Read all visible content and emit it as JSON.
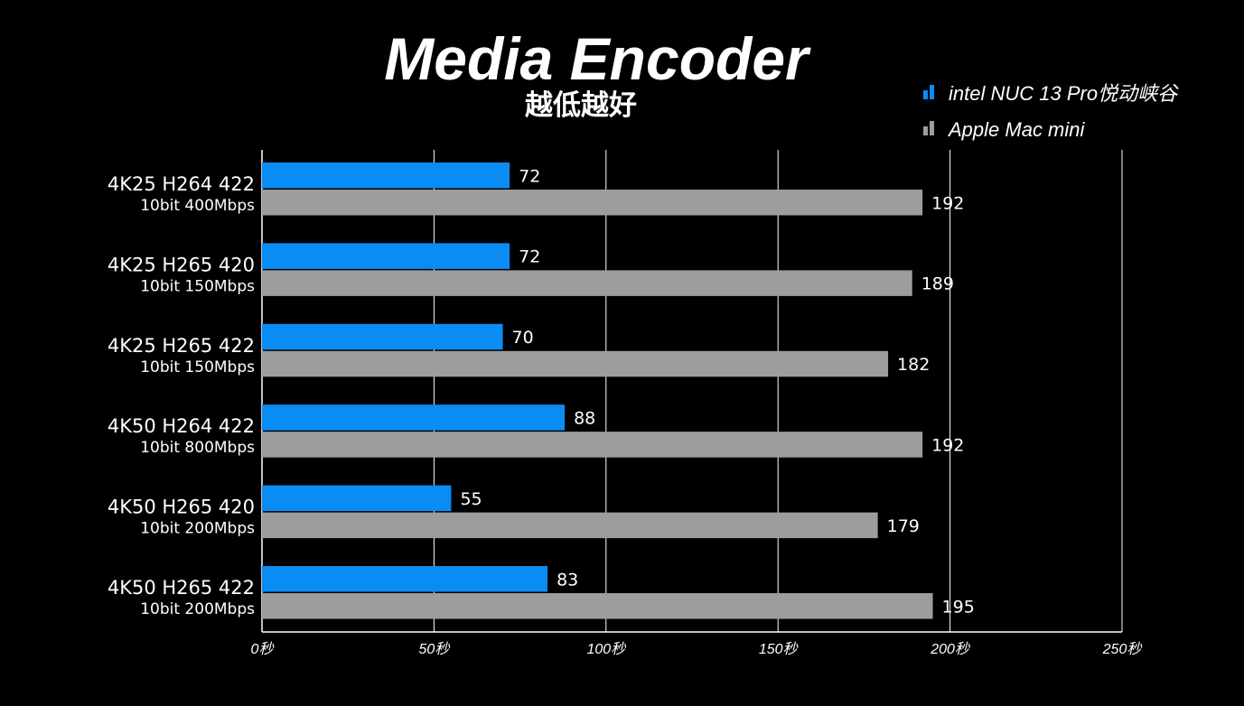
{
  "chart_data": {
    "type": "bar",
    "orientation": "horizontal",
    "title": "Media Encoder",
    "subtitle": "越低越好",
    "categories": [
      {
        "main": "4K25 H264 422",
        "sub": "10bit 400Mbps"
      },
      {
        "main": "4K25 H265 420",
        "sub": "10bit 150Mbps"
      },
      {
        "main": "4K25 H265 422",
        "sub": "10bit 150Mbps"
      },
      {
        "main": "4K50 H264 422",
        "sub": "10bit 800Mbps"
      },
      {
        "main": "4K50 H265 420",
        "sub": "10bit 200Mbps"
      },
      {
        "main": "4K50 H265 422",
        "sub": "10bit 200Mbps"
      }
    ],
    "series": [
      {
        "name": "intel NUC 13 Pro悦动峡谷",
        "color": "#0a8cf5",
        "values": [
          72,
          72,
          70,
          88,
          55,
          83
        ]
      },
      {
        "name": "Apple Mac mini",
        "color": "#9e9c9c",
        "values": [
          192,
          189,
          182,
          192,
          179,
          195
        ]
      }
    ],
    "value_labels": [
      [
        "72",
        "72",
        "70",
        "88",
        "55",
        "83"
      ],
      [
        "192",
        "189",
        "182",
        "192",
        "179",
        "195"
      ]
    ],
    "xlim": [
      0,
      250
    ],
    "ticks": [
      {
        "value": 0,
        "label": "0秒"
      },
      {
        "value": 50,
        "label": "50秒"
      },
      {
        "value": 100,
        "label": "100秒"
      },
      {
        "value": 150,
        "label": "150秒"
      },
      {
        "value": 200,
        "label": "200秒"
      },
      {
        "value": 250,
        "label": "250秒"
      }
    ],
    "grid": true,
    "legend_position": "top-right",
    "colors": {
      "background": "#000000",
      "text": "#ffffff",
      "grid": "#ffffff"
    }
  }
}
